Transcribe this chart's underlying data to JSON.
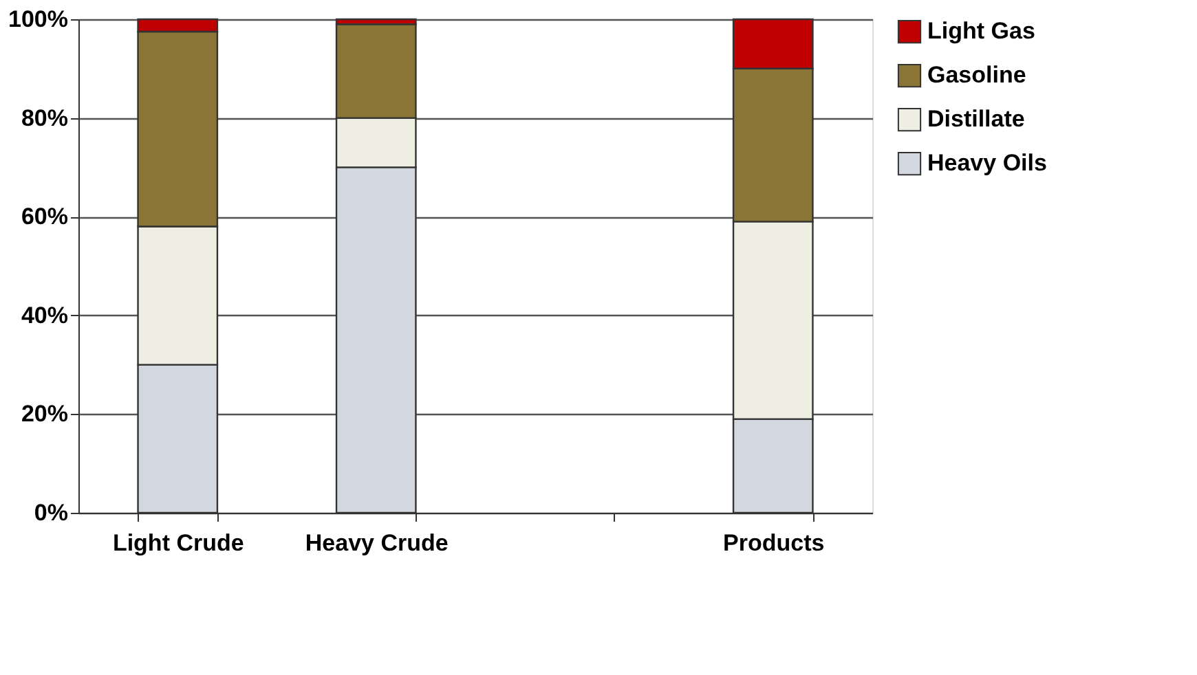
{
  "chart_data": {
    "type": "bar",
    "stacked": true,
    "categories": [
      "Light Crude",
      "Heavy Crude",
      null,
      "Products"
    ],
    "series": [
      {
        "name": "Heavy Oils",
        "color": "#d3d8e0",
        "values": [
          30,
          70,
          null,
          19
        ]
      },
      {
        "name": "Distillate",
        "color": "#eeeee2",
        "values": [
          28,
          10,
          null,
          40
        ]
      },
      {
        "name": "Gasoline",
        "color": "#8b7536",
        "values": [
          39.5,
          19,
          null,
          31
        ]
      },
      {
        "name": "Light Gas",
        "color": "#c00000",
        "values": [
          2.5,
          1,
          null,
          10
        ]
      }
    ],
    "ylim": [
      0,
      100
    ],
    "yticks": [
      {
        "value": 0,
        "label": "0%"
      },
      {
        "value": 20,
        "label": "20%"
      },
      {
        "value": 40,
        "label": "40%"
      },
      {
        "value": 60,
        "label": "60%"
      },
      {
        "value": 80,
        "label": "80%"
      },
      {
        "value": 100,
        "label": "100%"
      }
    ],
    "grid": "y",
    "legend": "right"
  }
}
